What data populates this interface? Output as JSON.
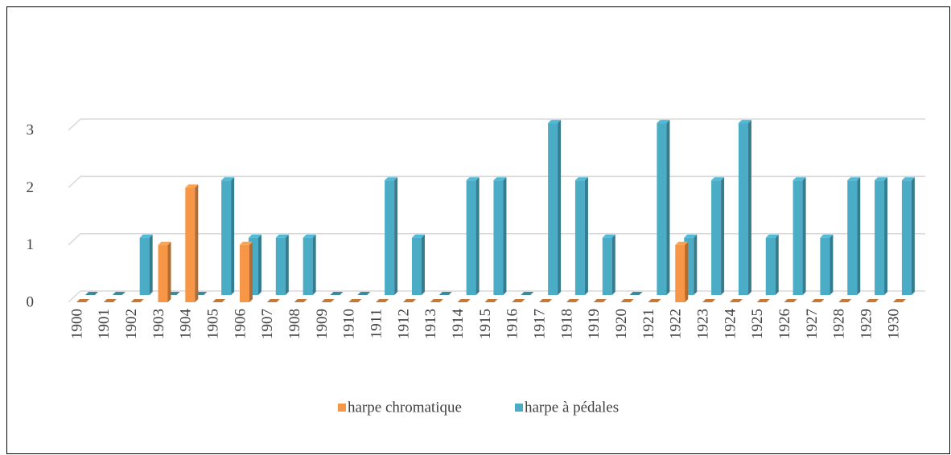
{
  "chart_data": {
    "type": "bar3d",
    "categories": [
      "1900",
      "1901",
      "1902",
      "1903",
      "1904",
      "1905",
      "1906",
      "1907",
      "1908",
      "1909",
      "1910",
      "1911",
      "1912",
      "1913",
      "1914",
      "1915",
      "1916",
      "1917",
      "1918",
      "1919",
      "1920",
      "1921",
      "1922",
      "1923",
      "1924",
      "1925",
      "1926",
      "1927",
      "1928",
      "1929",
      "1930"
    ],
    "series": [
      {
        "name": "harpe chromatique",
        "color": "#f79646",
        "values": [
          0,
          0,
          0,
          1,
          2,
          0,
          1,
          0,
          0,
          0,
          0,
          0,
          0,
          0,
          0,
          0,
          0,
          0,
          0,
          0,
          0,
          0,
          1,
          0,
          0,
          0,
          0,
          0,
          0,
          0,
          0
        ]
      },
      {
        "name": "harpe à pédales",
        "color": "#4bacc6",
        "values": [
          0,
          0,
          1,
          0,
          0,
          2,
          1,
          1,
          1,
          0,
          0,
          2,
          1,
          0,
          2,
          2,
          0,
          3,
          2,
          1,
          0,
          3,
          1,
          2,
          3,
          1,
          2,
          1,
          2,
          2,
          2
        ]
      }
    ],
    "ylim": [
      0,
      3
    ],
    "yticks": [
      0,
      1,
      2,
      3
    ],
    "grid": true,
    "legend": "bottom"
  }
}
